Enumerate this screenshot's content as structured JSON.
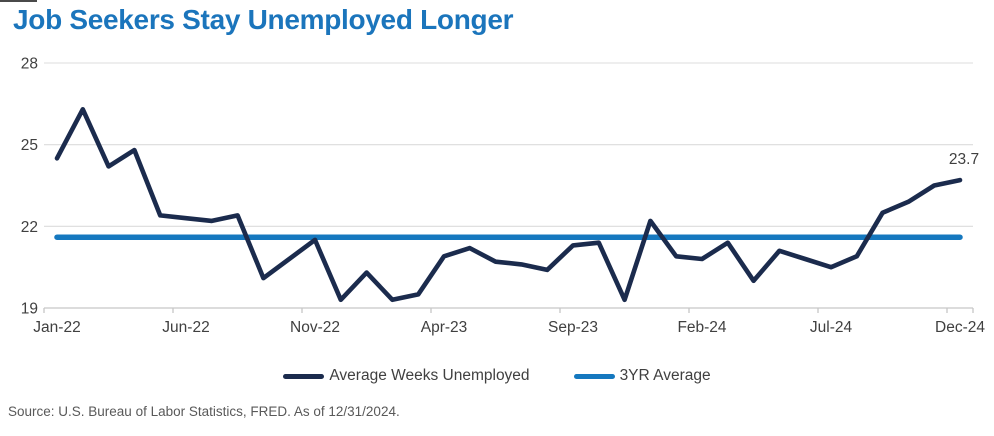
{
  "page": {
    "title": "Job Seekers Stay Unemployed Longer",
    "source": "Source: U.S. Bureau of Labor Statistics, FRED. As of 12/31/2024."
  },
  "legend": [
    {
      "label": "Average Weeks Unemployed",
      "color": "#1B2B4D"
    },
    {
      "label": "3YR Average",
      "color": "#1578BF"
    }
  ],
  "colors": {
    "title": "#1B75BC",
    "series_line": "#1B2B4D",
    "average_line": "#1578BF",
    "axis_text": "#404040",
    "gridline": "#DCDCDC",
    "axis_line": "#C6C6C6",
    "annotation_text": "#404040",
    "source_text": "#595959"
  },
  "chart_data": {
    "type": "line",
    "title": "Job Seekers Stay Unemployed Longer",
    "xlabel": "",
    "ylabel": "",
    "ylim": [
      19,
      28
    ],
    "y_ticks": [
      19,
      22,
      25,
      28
    ],
    "grid": "horizontal",
    "legend_position": "bottom",
    "x": [
      "Jan-22",
      "Feb-22",
      "Mar-22",
      "Apr-22",
      "May-22",
      "Jun-22",
      "Jul-22",
      "Aug-22",
      "Sep-22",
      "Oct-22",
      "Nov-22",
      "Dec-22",
      "Jan-23",
      "Feb-23",
      "Mar-23",
      "Apr-23",
      "May-23",
      "Jun-23",
      "Jul-23",
      "Aug-23",
      "Sep-23",
      "Oct-23",
      "Nov-23",
      "Dec-23",
      "Jan-24",
      "Feb-24",
      "Mar-24",
      "Apr-24",
      "May-24",
      "Jun-24",
      "Jul-24",
      "Aug-24",
      "Sep-24",
      "Oct-24",
      "Nov-24",
      "Dec-24"
    ],
    "x_tick_labels": [
      "Jan-22",
      "Jun-22",
      "Nov-22",
      "Apr-23",
      "Sep-23",
      "Feb-24",
      "Jul-24",
      "Dec-24"
    ],
    "series": [
      {
        "name": "Average Weeks Unemployed",
        "type": "monthly",
        "values": [
          24.5,
          26.3,
          24.2,
          24.8,
          22.4,
          22.3,
          22.2,
          22.4,
          20.1,
          20.8,
          21.5,
          19.3,
          20.3,
          19.3,
          19.5,
          20.9,
          21.2,
          20.7,
          20.6,
          20.4,
          21.3,
          21.4,
          19.3,
          22.2,
          20.9,
          20.8,
          21.4,
          20.0,
          21.1,
          20.8,
          20.5,
          20.9,
          22.5,
          22.9,
          23.5,
          23.7
        ]
      },
      {
        "name": "3YR Average",
        "type": "constant",
        "value": 21.6
      }
    ],
    "annotation": {
      "text": "23.7",
      "month": "Dec-24"
    }
  }
}
